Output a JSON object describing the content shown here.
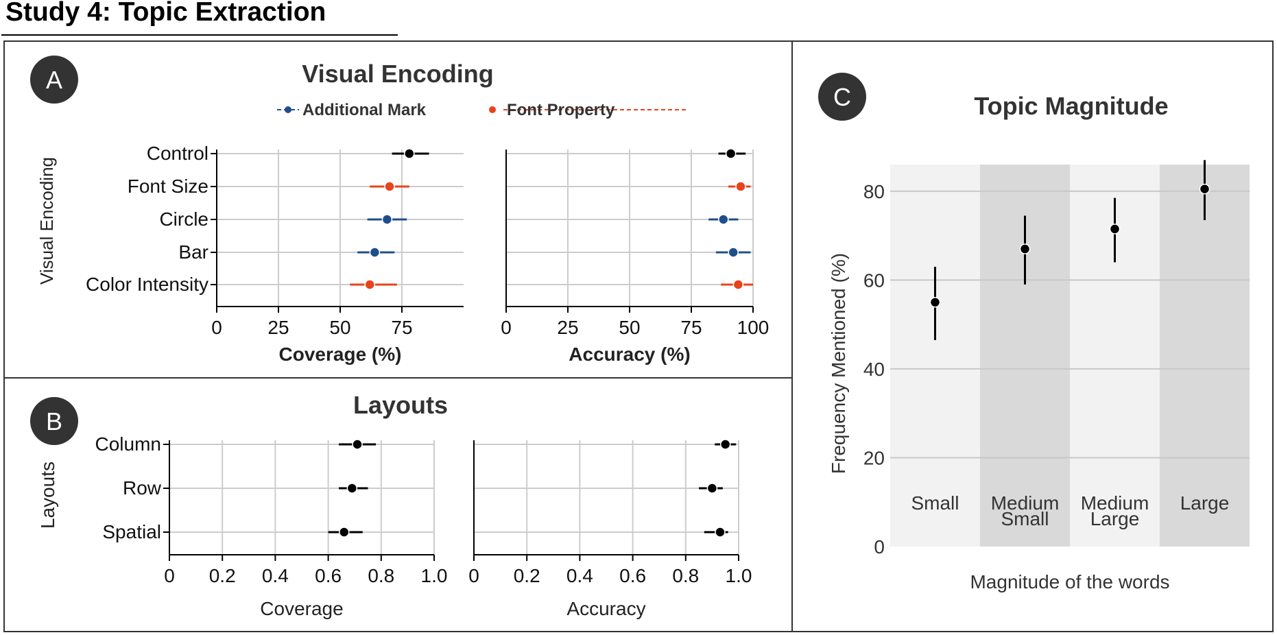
{
  "page_title": "Study 4: Topic Extraction",
  "colors": {
    "additional_mark": "#1f4e8c",
    "font_property": "#e8431a",
    "black": "#000000",
    "band_light": "#f2f2f2",
    "band_dark": "#d9d9d9",
    "grid": "#cccccc",
    "badge": "#333333"
  },
  "panels": {
    "a": {
      "badge": "A"
    },
    "b": {
      "badge": "B"
    },
    "c": {
      "badge": "C"
    }
  },
  "chart_data": [
    {
      "id": "visual-encoding-coverage",
      "type": "scatter",
      "title": "Visual Encoding",
      "legend": [
        {
          "name": "Additional Mark",
          "color": "#1f4e8c"
        },
        {
          "name": "Font Property",
          "color": "#e8431a"
        }
      ],
      "ylabel": "Visual Encoding",
      "xlabel": "Coverage (%)",
      "xlim": [
        0,
        100
      ],
      "xticks": [
        "0",
        "25",
        "50",
        "75"
      ],
      "categories": [
        "Control",
        "Font Size",
        "Circle",
        "Bar",
        "Color Intensity"
      ],
      "points": [
        {
          "category": "Control",
          "value": 78,
          "low": 71,
          "high": 86,
          "group": "control"
        },
        {
          "category": "Font Size",
          "value": 70,
          "low": 62,
          "high": 78,
          "group": "Font Property"
        },
        {
          "category": "Circle",
          "value": 69,
          "low": 61,
          "high": 77,
          "group": "Additional Mark"
        },
        {
          "category": "Bar",
          "value": 64,
          "low": 57,
          "high": 72,
          "group": "Additional Mark"
        },
        {
          "category": "Color Intensity",
          "value": 62,
          "low": 54,
          "high": 73,
          "group": "Font Property"
        }
      ]
    },
    {
      "id": "visual-encoding-accuracy",
      "type": "scatter",
      "xlabel": "Accuracy (%)",
      "xlim": [
        0,
        100
      ],
      "xticks": [
        "0",
        "25",
        "50",
        "75",
        "100"
      ],
      "categories": [
        "Control",
        "Font Size",
        "Circle",
        "Bar",
        "Color Intensity"
      ],
      "points": [
        {
          "category": "Control",
          "value": 91,
          "low": 86,
          "high": 97,
          "group": "control"
        },
        {
          "category": "Font Size",
          "value": 95,
          "low": 90,
          "high": 99,
          "group": "Font Property"
        },
        {
          "category": "Circle",
          "value": 88,
          "low": 82,
          "high": 94,
          "group": "Additional Mark"
        },
        {
          "category": "Bar",
          "value": 92,
          "low": 85,
          "high": 99,
          "group": "Additional Mark"
        },
        {
          "category": "Color Intensity",
          "value": 94,
          "low": 87,
          "high": 100,
          "group": "Font Property"
        }
      ]
    },
    {
      "id": "layouts-coverage",
      "type": "scatter",
      "title": "Layouts",
      "ylabel": "Layouts",
      "xlabel": "Coverage",
      "xlim": [
        0,
        1
      ],
      "xticks": [
        "0",
        "0.2",
        "0.4",
        "0.6",
        "0.8",
        "1.0"
      ],
      "categories": [
        "Column",
        "Row",
        "Spatial"
      ],
      "points": [
        {
          "category": "Column",
          "value": 0.71,
          "low": 0.64,
          "high": 0.78
        },
        {
          "category": "Row",
          "value": 0.69,
          "low": 0.64,
          "high": 0.75
        },
        {
          "category": "Spatial",
          "value": 0.66,
          "low": 0.6,
          "high": 0.73
        }
      ]
    },
    {
      "id": "layouts-accuracy",
      "type": "scatter",
      "xlabel": "Accuracy",
      "xlim": [
        0,
        1
      ],
      "xticks": [
        "0",
        "0.2",
        "0.4",
        "0.6",
        "0.8",
        "1.0"
      ],
      "categories": [
        "Column",
        "Row",
        "Spatial"
      ],
      "points": [
        {
          "category": "Column",
          "value": 0.95,
          "low": 0.91,
          "high": 0.99
        },
        {
          "category": "Row",
          "value": 0.9,
          "low": 0.85,
          "high": 0.94
        },
        {
          "category": "Spatial",
          "value": 0.93,
          "low": 0.87,
          "high": 0.96
        }
      ]
    },
    {
      "id": "topic-magnitude",
      "type": "scatter",
      "title": "Topic Magnitude",
      "ylabel": "Frequency Mentioned (%)",
      "xlabel": "Magnitude of the words",
      "ylim": [
        0,
        86
      ],
      "yticks": [
        "0",
        "20",
        "40",
        "60",
        "80"
      ],
      "categories": [
        {
          "line1": "Small",
          "line2": ""
        },
        {
          "line1": "Medium",
          "line2": "Small"
        },
        {
          "line1": "Medium",
          "line2": "Large"
        },
        {
          "line1": "Large",
          "line2": ""
        }
      ],
      "points": [
        {
          "value": 55,
          "low": 46.5,
          "high": 63
        },
        {
          "value": 67,
          "low": 59,
          "high": 74.5
        },
        {
          "value": 71.5,
          "low": 64,
          "high": 78.5
        },
        {
          "value": 80.5,
          "low": 73.5,
          "high": 87
        }
      ]
    }
  ]
}
